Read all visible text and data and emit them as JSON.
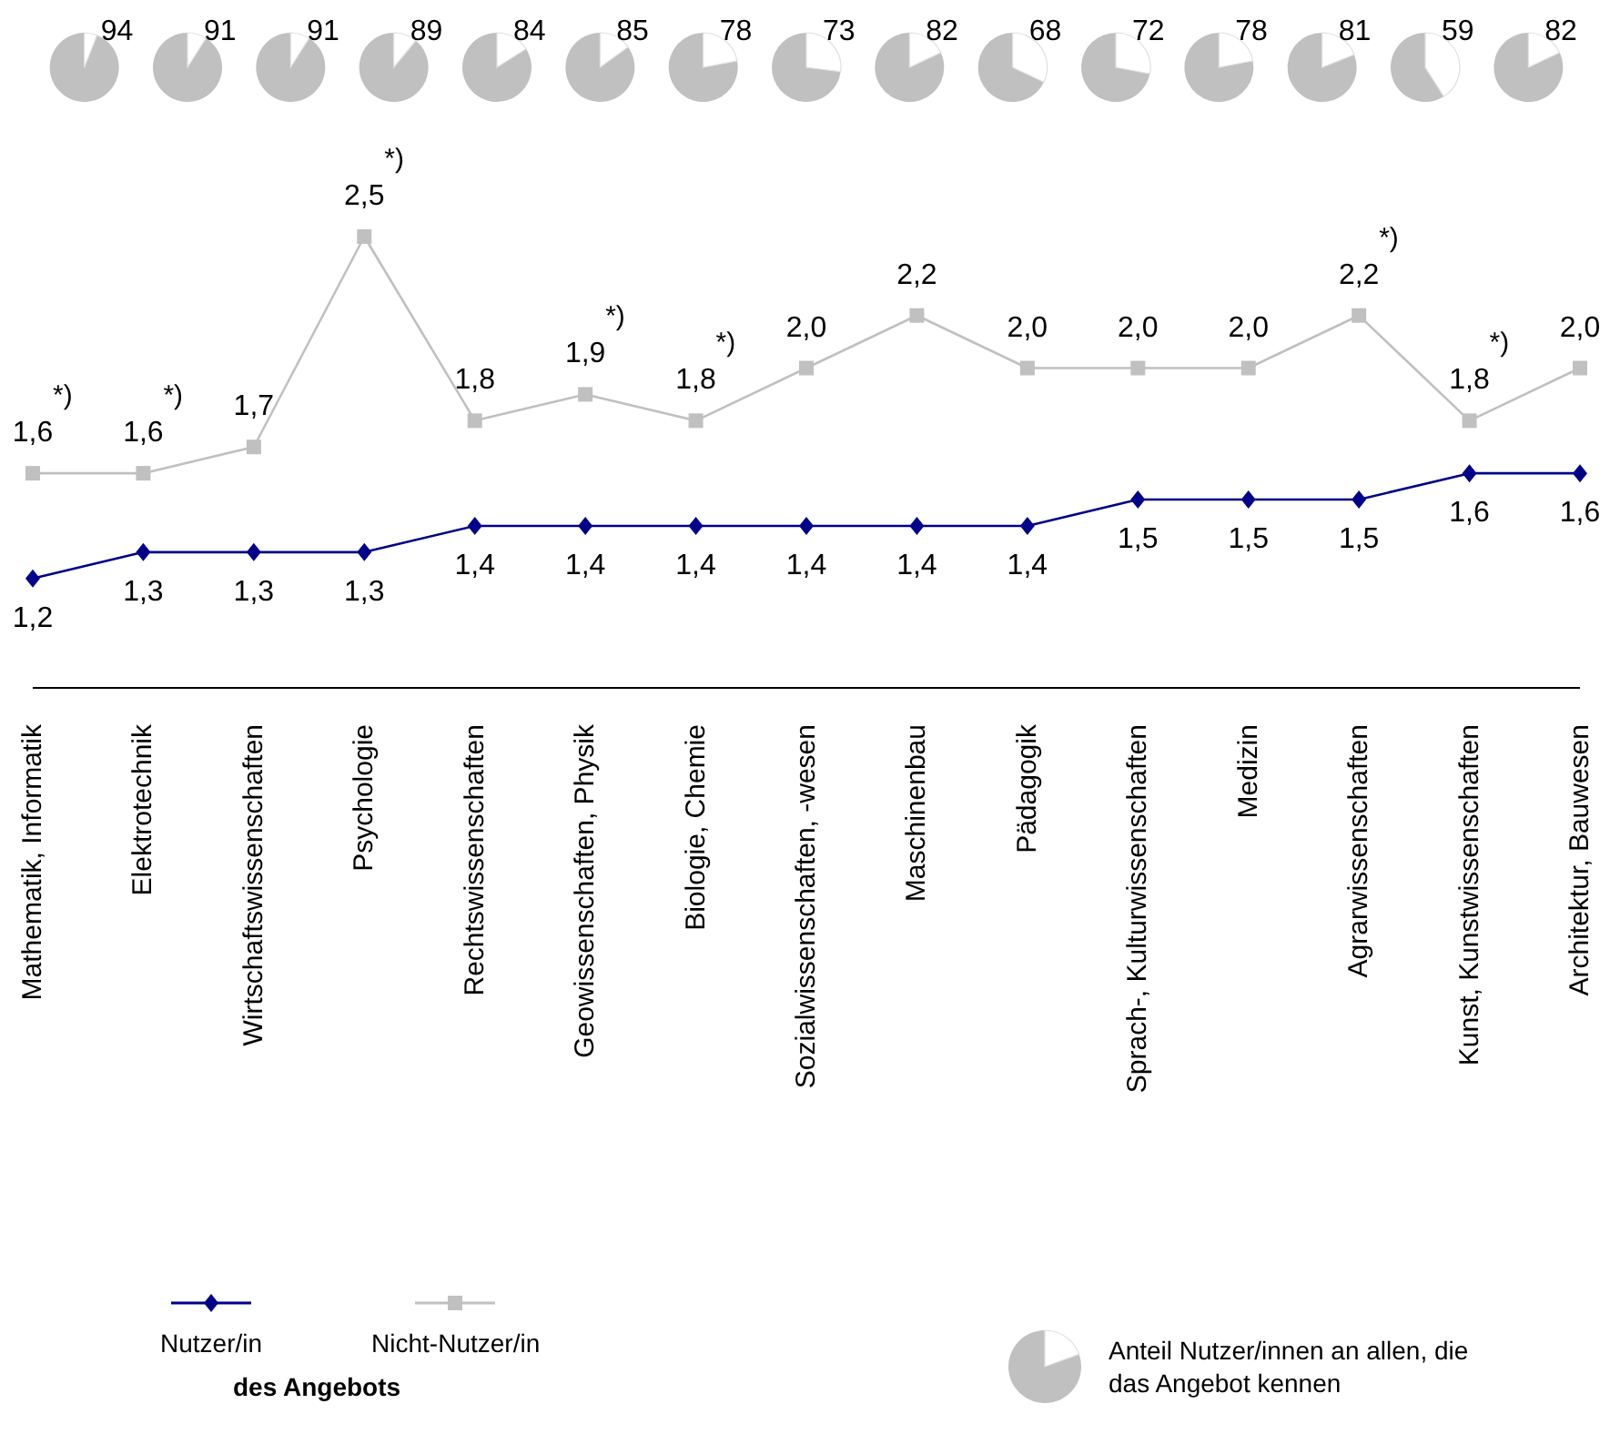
{
  "chart_data": [
    {
      "type": "line",
      "categories": [
        "Mathematik, Informatik",
        "Elektrotechnik",
        "Wirtschaftswissenschaften",
        "Psychologie",
        "Rechtswissenschaften",
        "Geowissenschaften, Physik",
        "Biologie, Chemie",
        "Sozialwissenschaften, -wesen",
        "Maschinenbau",
        "Pädagogik",
        "Sprach-, Kulturwissenschaften",
        "Medizin",
        "Agrarwissenschaften",
        "Kunst, Kunstwissenschaften",
        "Architektur, Bauwesen"
      ],
      "series": [
        {
          "name": "Nutzer/in",
          "color": "#00008b",
          "marker": "diamond",
          "values": [
            1.2,
            1.3,
            1.3,
            1.3,
            1.4,
            1.4,
            1.4,
            1.4,
            1.4,
            1.4,
            1.5,
            1.5,
            1.5,
            1.6,
            1.6
          ],
          "value_labels": [
            "1,2",
            "1,3",
            "1,3",
            "1,3",
            "1,4",
            "1,4",
            "1,4",
            "1,4",
            "1,4",
            "1,4",
            "1,5",
            "1,5",
            "1,5",
            "1,6",
            "1,6"
          ]
        },
        {
          "name": "Nicht-Nutzer/in",
          "color": "#c0c0c0",
          "marker": "square",
          "values": [
            1.6,
            1.6,
            1.7,
            2.5,
            1.8,
            1.9,
            1.8,
            2.0,
            2.2,
            2.0,
            2.0,
            2.0,
            2.2,
            1.8,
            2.0
          ],
          "value_labels": [
            "1,6",
            "1,6",
            "1,7",
            "2,5",
            "1,8",
            "1,9",
            "1,8",
            "2,0",
            "2,2",
            "2,0",
            "2,0",
            "2,0",
            "2,2",
            "1,8",
            "2,0"
          ]
        }
      ],
      "legend": "bottom left",
      "legend_title": "des Angebots",
      "annotations": [
        {
          "text": "*)",
          "x": "Mathematik, Informatik",
          "y": 1.6
        },
        {
          "text": "*)",
          "x": "Elektrotechnik",
          "y": 1.6
        },
        {
          "text": "*)",
          "x": "Psychologie",
          "y": 2.5
        },
        {
          "text": "*)",
          "x": "Geowissenschaften, Physik",
          "y": 1.9
        },
        {
          "text": "*)",
          "x": "Biologie, Chemie",
          "y": 1.8
        },
        {
          "text": "*)",
          "x": "Agrarwissenschaften",
          "y": 2.2
        },
        {
          "text": "*)",
          "x": "Kunst, Kunstwissenschaften",
          "y": 1.8
        }
      ]
    },
    {
      "type": "other",
      "categories": [
        null,
        null,
        null,
        null,
        null,
        null,
        null,
        null,
        null,
        null,
        null,
        null,
        null,
        null,
        null
      ],
      "values": [
        94,
        91,
        91,
        89,
        84,
        85,
        78,
        73,
        82,
        68,
        72,
        78,
        81,
        59,
        82
      ],
      "color": "#c0c0c0",
      "data_labels": true,
      "annotations": [
        "Anteil Nutzer/innen an allen, die das Angebot kennen"
      ]
    }
  ]
}
